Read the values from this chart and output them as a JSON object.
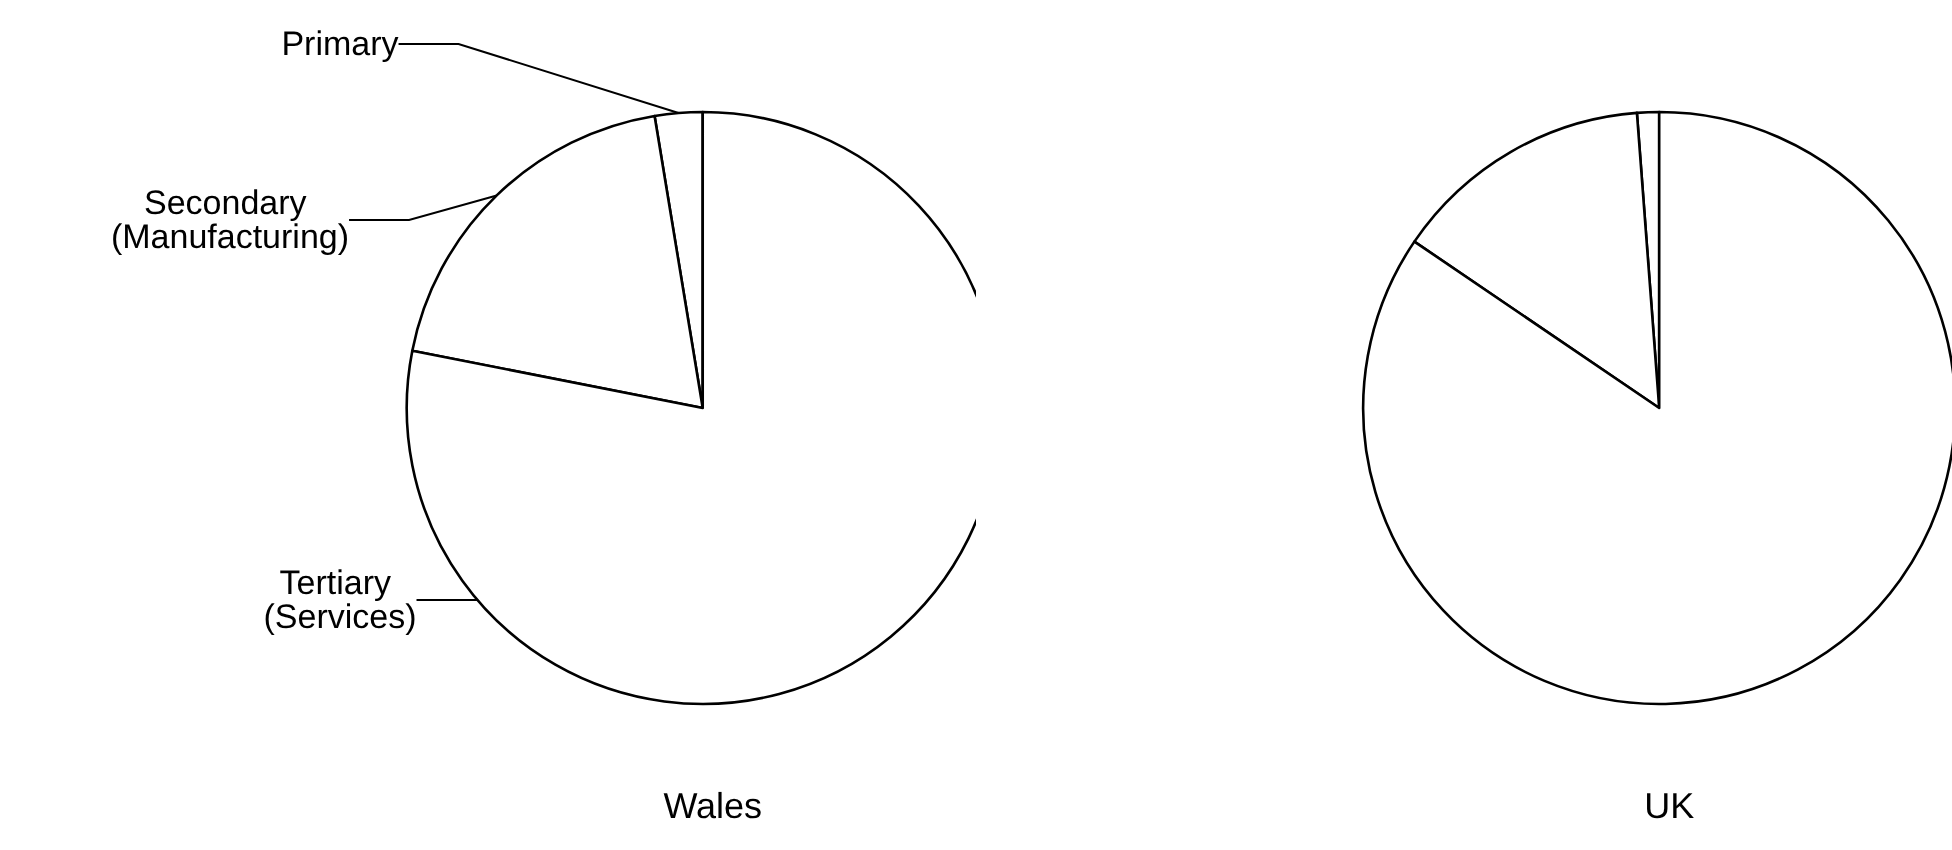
{
  "chart_data": [
    {
      "type": "pie",
      "title": "Wales",
      "categories": [
        "Primary",
        "Secondary (Manufacturing)",
        "Tertiary (Services)"
      ],
      "values": [
        2.6,
        19.3,
        78.1
      ],
      "colors": [
        "#ffffff",
        "#ffffff",
        "#ffffff"
      ]
    },
    {
      "type": "pie",
      "title": "UK",
      "categories": [
        null,
        null,
        null
      ],
      "values": [
        1.2,
        14.3,
        84.5
      ],
      "colors": [
        "#ffffff",
        "#ffffff",
        "#ffffff"
      ]
    }
  ]
}
